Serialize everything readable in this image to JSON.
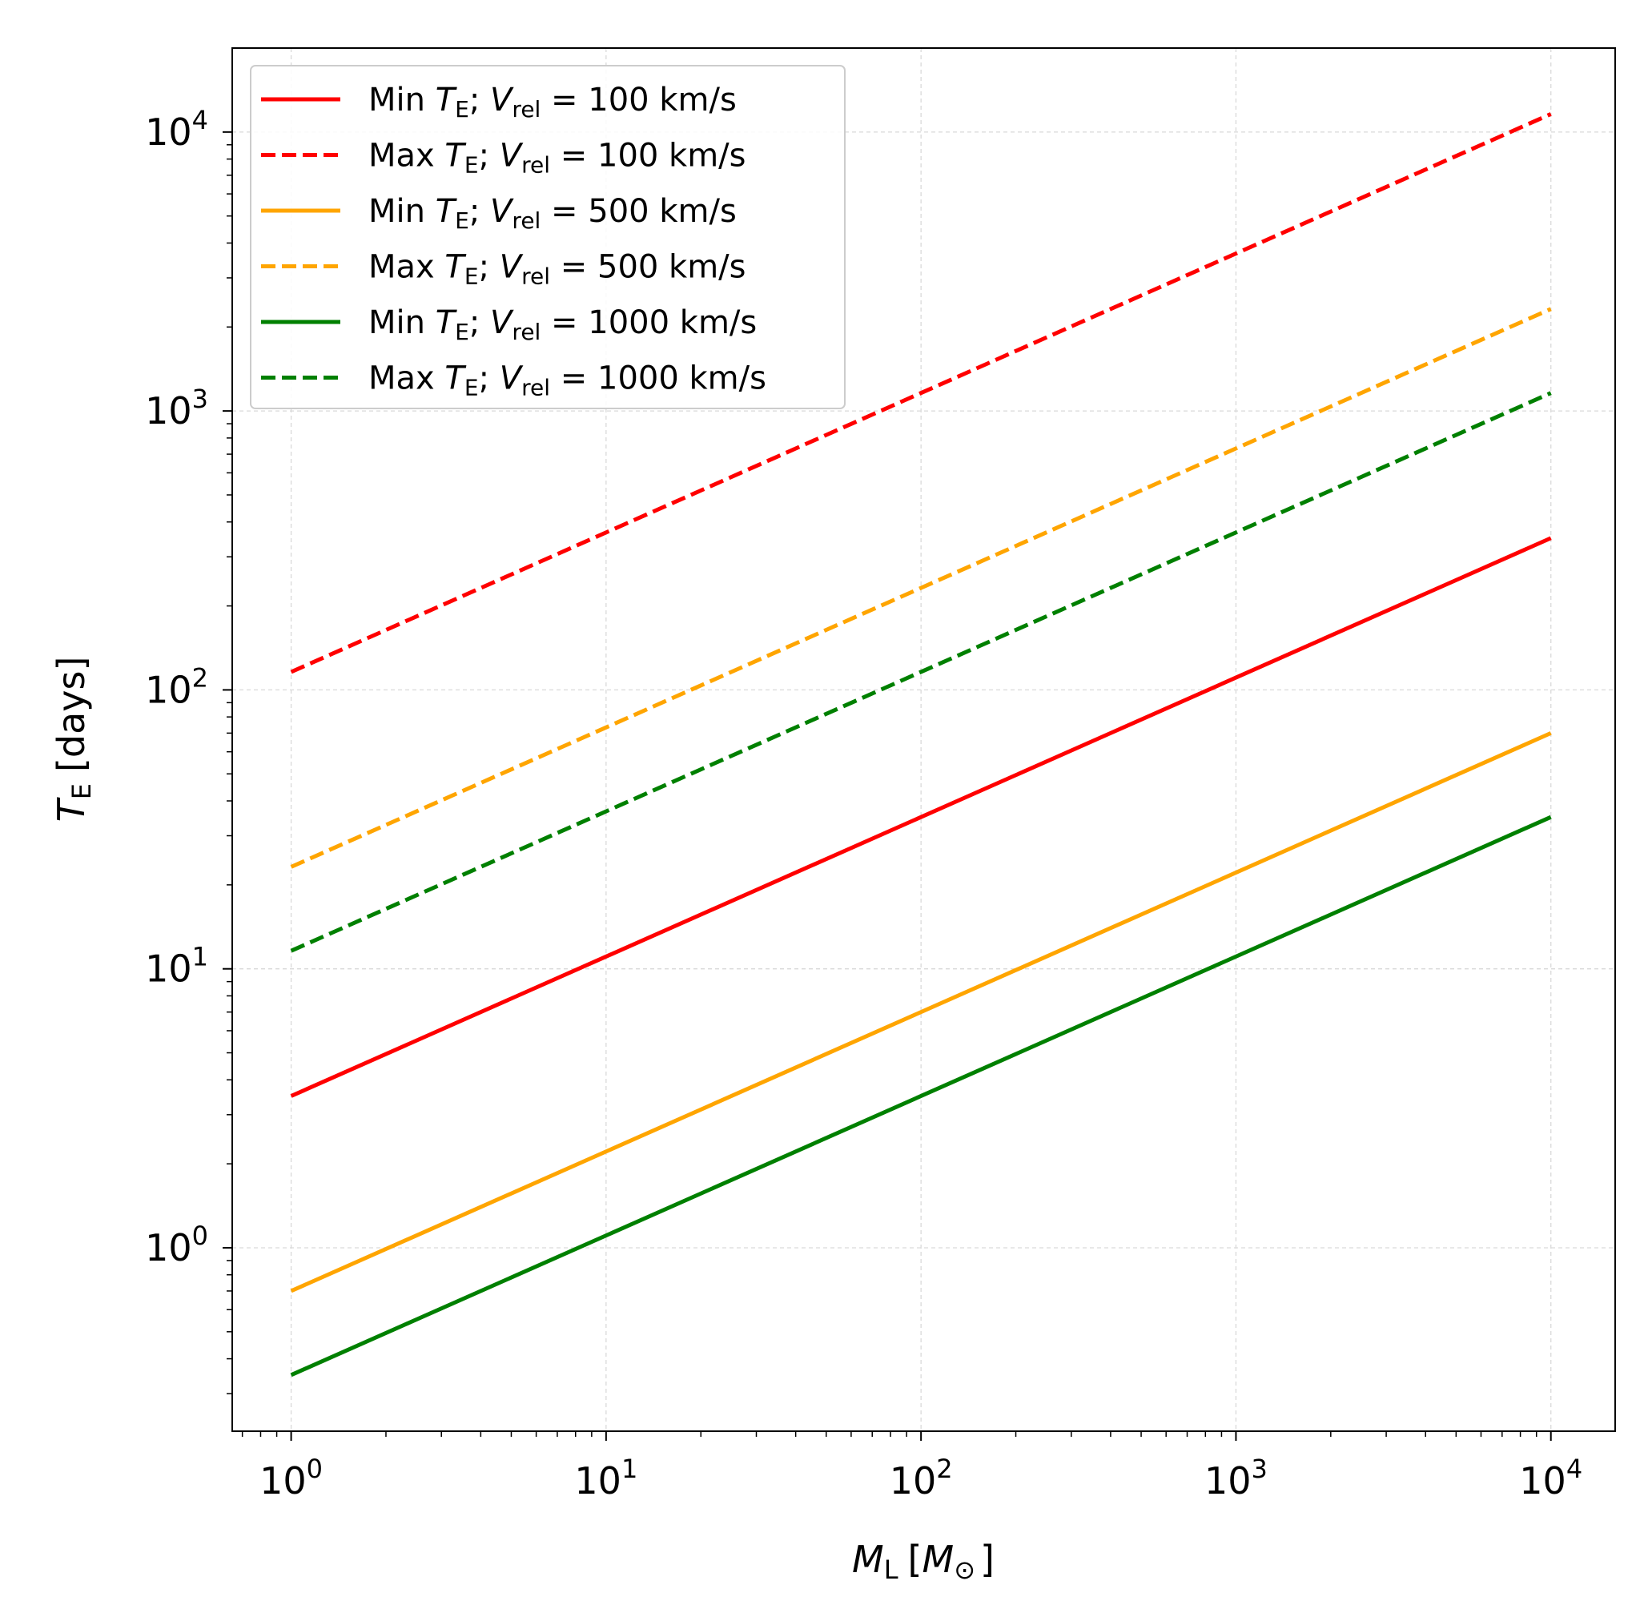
{
  "chart_data": {
    "type": "line",
    "title": "",
    "xscale": "log",
    "yscale": "log",
    "xlim": [
      0.65,
      16000
    ],
    "ylim": [
      0.22,
      20000
    ],
    "grid": true,
    "legend_position": "top-left",
    "xlabel": {
      "main": "M",
      "sub": "L",
      "bracket_open": "[",
      "unit": "M",
      "unit_sub": "⊙",
      "bracket_close": "]"
    },
    "ylabel": {
      "main": "T",
      "sub": "E",
      "rest": "[days]"
    },
    "x_ticks": [
      {
        "value": 1,
        "base": "10",
        "exp": "0"
      },
      {
        "value": 10,
        "base": "10",
        "exp": "1"
      },
      {
        "value": 100,
        "base": "10",
        "exp": "2"
      },
      {
        "value": 1000,
        "base": "10",
        "exp": "3"
      },
      {
        "value": 10000,
        "base": "10",
        "exp": "4"
      }
    ],
    "y_ticks": [
      {
        "value": 1,
        "base": "10",
        "exp": "0"
      },
      {
        "value": 10,
        "base": "10",
        "exp": "1"
      },
      {
        "value": 100,
        "base": "10",
        "exp": "2"
      },
      {
        "value": 1000,
        "base": "10",
        "exp": "3"
      },
      {
        "value": 10000,
        "base": "10",
        "exp": "4"
      }
    ],
    "x": [
      1,
      10000
    ],
    "series": [
      {
        "name": "Min T_E; V_rel = 100 km/s",
        "kind": "Min",
        "vrel": "100",
        "color": "#ff0000",
        "dashed": false,
        "values": [
          3.5,
          350
        ]
      },
      {
        "name": "Max T_E; V_rel = 100 km/s",
        "kind": "Max",
        "vrel": "100",
        "color": "#ff0000",
        "dashed": true,
        "values": [
          116,
          11600
        ]
      },
      {
        "name": "Min T_E; V_rel = 500 km/s",
        "kind": "Min",
        "vrel": "500",
        "color": "#ffa500",
        "dashed": false,
        "values": [
          0.7,
          70
        ]
      },
      {
        "name": "Max T_E; V_rel = 500 km/s",
        "kind": "Max",
        "vrel": "500",
        "color": "#ffa500",
        "dashed": true,
        "values": [
          23.2,
          2320
        ]
      },
      {
        "name": "Min T_E; V_rel = 1000 km/s",
        "kind": "Min",
        "vrel": "1000",
        "color": "#008000",
        "dashed": false,
        "values": [
          0.35,
          35
        ]
      },
      {
        "name": "Max T_E; V_rel = 1000 km/s",
        "kind": "Max",
        "vrel": "1000",
        "color": "#008000",
        "dashed": true,
        "values": [
          11.6,
          1160
        ]
      }
    ],
    "legend_text": {
      "T": "T",
      "E": "E",
      "V": "V",
      "rel": "rel",
      "eq": "=",
      "unit": "km/s"
    }
  }
}
